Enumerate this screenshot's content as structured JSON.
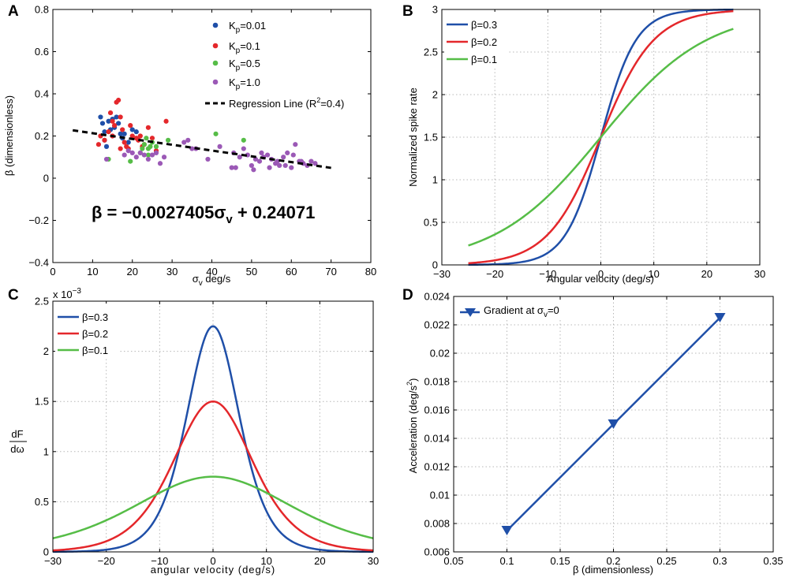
{
  "figure": {
    "panel_labels": [
      "A",
      "B",
      "C",
      "D"
    ]
  },
  "chart_data": [
    {
      "id": "A",
      "type": "scatter",
      "xlabel": "σ",
      "xlabel_sub": "v",
      "xlabel_rest": " deg/s",
      "ylabel": "β (dimensionless)",
      "xlim": [
        0,
        80
      ],
      "ylim": [
        -0.4,
        0.8
      ],
      "xticks": [
        0,
        10,
        20,
        30,
        40,
        50,
        60,
        70,
        80
      ],
      "yticks": [
        -0.4,
        -0.2,
        0,
        0.2,
        0.4,
        0.6,
        0.8
      ],
      "xtick_labels": [
        "0",
        "10",
        "20",
        "30",
        "40",
        "50",
        "60",
        "70",
        "80"
      ],
      "ytick_labels": [
        "−0.4",
        "−0.2",
        "0",
        "0.2",
        "0.4",
        "0.6",
        "0.8"
      ],
      "grid": false,
      "legend_position": "top-right",
      "series": [
        {
          "name": "K",
          "sub": "p",
          "suffix": "=0.01",
          "color": "#1f4fa8",
          "x": [
            12,
            12.5,
            13,
            13.5,
            14,
            14.5,
            15,
            16,
            16.5,
            17,
            18,
            19,
            20,
            21,
            13,
            15.5,
            17.5
          ],
          "y": [
            0.29,
            0.26,
            0.22,
            0.15,
            0.27,
            0.23,
            0.28,
            0.29,
            0.26,
            0.21,
            0.21,
            0.17,
            0.23,
            0.22,
            0.18,
            0.24,
            0.19
          ]
        },
        {
          "name": "K",
          "sub": "p",
          "suffix": "=0.1",
          "color": "#e4272b",
          "x": [
            11.5,
            12,
            13,
            14,
            14.5,
            15,
            15.5,
            16,
            16.5,
            17,
            17.5,
            18,
            18.5,
            19,
            20,
            21,
            21.5,
            22,
            23,
            24,
            25,
            26,
            28.5,
            15,
            17,
            19.5,
            22.5
          ],
          "y": [
            0.16,
            0.2,
            0.18,
            0.22,
            0.31,
            0.27,
            0.25,
            0.36,
            0.37,
            0.29,
            0.23,
            0.17,
            0.15,
            0.14,
            0.2,
            0.19,
            0.18,
            0.2,
            0.16,
            0.24,
            0.19,
            0.13,
            0.27,
            0.2,
            0.14,
            0.25,
            0.15
          ]
        },
        {
          "name": "K",
          "sub": "p",
          "suffix": "=0.5",
          "color": "#56bd47",
          "x": [
            14,
            19.5,
            22.5,
            23,
            23.5,
            24,
            24.5,
            25,
            26,
            29,
            41,
            48,
            22,
            24
          ],
          "y": [
            0.09,
            0.08,
            0.14,
            0.16,
            0.19,
            0.14,
            0.15,
            0.17,
            0.15,
            0.18,
            0.21,
            0.18,
            0.12,
            0.11
          ]
        },
        {
          "name": "K",
          "sub": "p",
          "suffix": "=1.0",
          "color": "#9b59b6",
          "x": [
            13.5,
            18,
            19,
            20,
            21,
            22,
            23,
            24,
            25,
            26,
            27,
            28,
            33,
            34,
            35,
            36,
            39,
            42,
            45,
            46,
            47,
            49,
            50,
            51,
            52,
            53,
            54,
            55,
            56,
            57,
            58,
            59,
            60,
            61,
            62,
            63,
            64,
            65,
            48,
            50.5,
            52.5,
            54.5,
            58.5,
            60.5,
            62.5,
            45.5,
            56.5,
            66
          ],
          "y": [
            0.09,
            0.11,
            0.13,
            0.12,
            0.1,
            0.12,
            0.11,
            0.09,
            0.11,
            0.12,
            0.07,
            0.1,
            0.17,
            0.18,
            0.14,
            0.14,
            0.09,
            0.15,
            0.05,
            0.05,
            0.1,
            0.11,
            0.06,
            0.09,
            0.08,
            0.1,
            0.11,
            0.09,
            0.07,
            0.06,
            0.1,
            0.12,
            0.05,
            0.16,
            0.08,
            0.07,
            0.06,
            0.08,
            0.14,
            0.04,
            0.12,
            0.05,
            0.06,
            0.11,
            0.08,
            0.12,
            0.08,
            0.07
          ]
        }
      ],
      "regression": {
        "label": "Regression Line (R",
        "label_sup": "2",
        "label_rest": "=0.4)",
        "slope": -0.0027405,
        "intercept": 0.24071,
        "x_range": [
          5,
          70
        ]
      },
      "equation": {
        "lhs": "β = −0.0027405σ",
        "sub": "v",
        "rhs": " + 0.24071"
      }
    },
    {
      "id": "B",
      "type": "line",
      "xlabel": "Angular velocity (deg/s)",
      "ylabel": "Normalized spike rate",
      "xlim": [
        -30,
        30
      ],
      "ylim": [
        0,
        3
      ],
      "xticks": [
        -30,
        -20,
        -10,
        0,
        10,
        20,
        30
      ],
      "yticks": [
        0,
        0.5,
        1,
        1.5,
        2,
        2.5,
        3
      ],
      "xtick_labels": [
        "−30",
        "−20",
        "−10",
        "0",
        "10",
        "20",
        "30"
      ],
      "ytick_labels": [
        "0",
        "0.5",
        "1",
        "1.5",
        "2",
        "2.5",
        "3"
      ],
      "grid": true,
      "legend_position": "top-left",
      "series": [
        {
          "name": "β=0.3",
          "color": "#1f4fa8",
          "beta": 0.3,
          "x_range": [
            -25,
            25
          ]
        },
        {
          "name": "β=0.2",
          "color": "#e4272b",
          "beta": 0.2,
          "x_range": [
            -25,
            25
          ]
        },
        {
          "name": "β=0.1",
          "color": "#56bd47",
          "beta": 0.1,
          "x_range": [
            -25,
            25
          ]
        }
      ],
      "function": "3 / (1 + exp(-beta * x))"
    },
    {
      "id": "C",
      "type": "line",
      "xlabel": "angular velocity (deg/s)",
      "ylabel_num": "dF",
      "ylabel_den": "dω",
      "exponent_label": "x 10",
      "exponent_sup": "−3",
      "xlim": [
        -30,
        30
      ],
      "ylim": [
        0,
        2.5
      ],
      "xticks": [
        -30,
        -20,
        -10,
        0,
        10,
        20,
        30
      ],
      "yticks": [
        0,
        0.5,
        1,
        1.5,
        2,
        2.5
      ],
      "xtick_labels": [
        "−30",
        "−20",
        "−10",
        "0",
        "10",
        "20",
        "30"
      ],
      "ytick_labels": [
        "0",
        "0.5",
        "1",
        "1.5",
        "2",
        "2.5"
      ],
      "grid": true,
      "legend_position": "top-left",
      "series": [
        {
          "name": "β=0.3",
          "color": "#1f4fa8",
          "beta": 0.3
        },
        {
          "name": "β=0.2",
          "color": "#e4272b",
          "beta": 0.2
        },
        {
          "name": "β=0.1",
          "color": "#56bd47",
          "beta": 0.1
        }
      ],
      "function": "30 * beta * s(1-s) scaled, peak = 7.5*beta (x10^-3)"
    },
    {
      "id": "D",
      "type": "line",
      "xlabel": "β (dimensionless)",
      "ylabel": "Acceleration (deg/s",
      "ylabel_sup": "2",
      "ylabel_rest": ")",
      "xlim": [
        0.05,
        0.35
      ],
      "ylim": [
        0.006,
        0.024
      ],
      "xticks": [
        0.05,
        0.1,
        0.15,
        0.2,
        0.25,
        0.3,
        0.35
      ],
      "yticks": [
        0.006,
        0.008,
        0.01,
        0.012,
        0.014,
        0.016,
        0.018,
        0.02,
        0.022,
        0.024
      ],
      "xtick_labels": [
        "0.05",
        "0.1",
        "0.15",
        "0.2",
        "0.25",
        "0.3",
        "0.35"
      ],
      "ytick_labels": [
        "0.006",
        "0.008",
        "0.01",
        "0.012",
        "0.014",
        "0.016",
        "0.018",
        "0.02",
        "0.022",
        "0.024"
      ],
      "grid": true,
      "legend_position": "top-left",
      "series": [
        {
          "name": "Gradient at σ",
          "sub": "v",
          "suffix": "=0",
          "color": "#1f4fa8",
          "x": [
            0.1,
            0.2,
            0.3
          ],
          "y": [
            0.0075,
            0.015,
            0.0225
          ]
        }
      ]
    }
  ]
}
